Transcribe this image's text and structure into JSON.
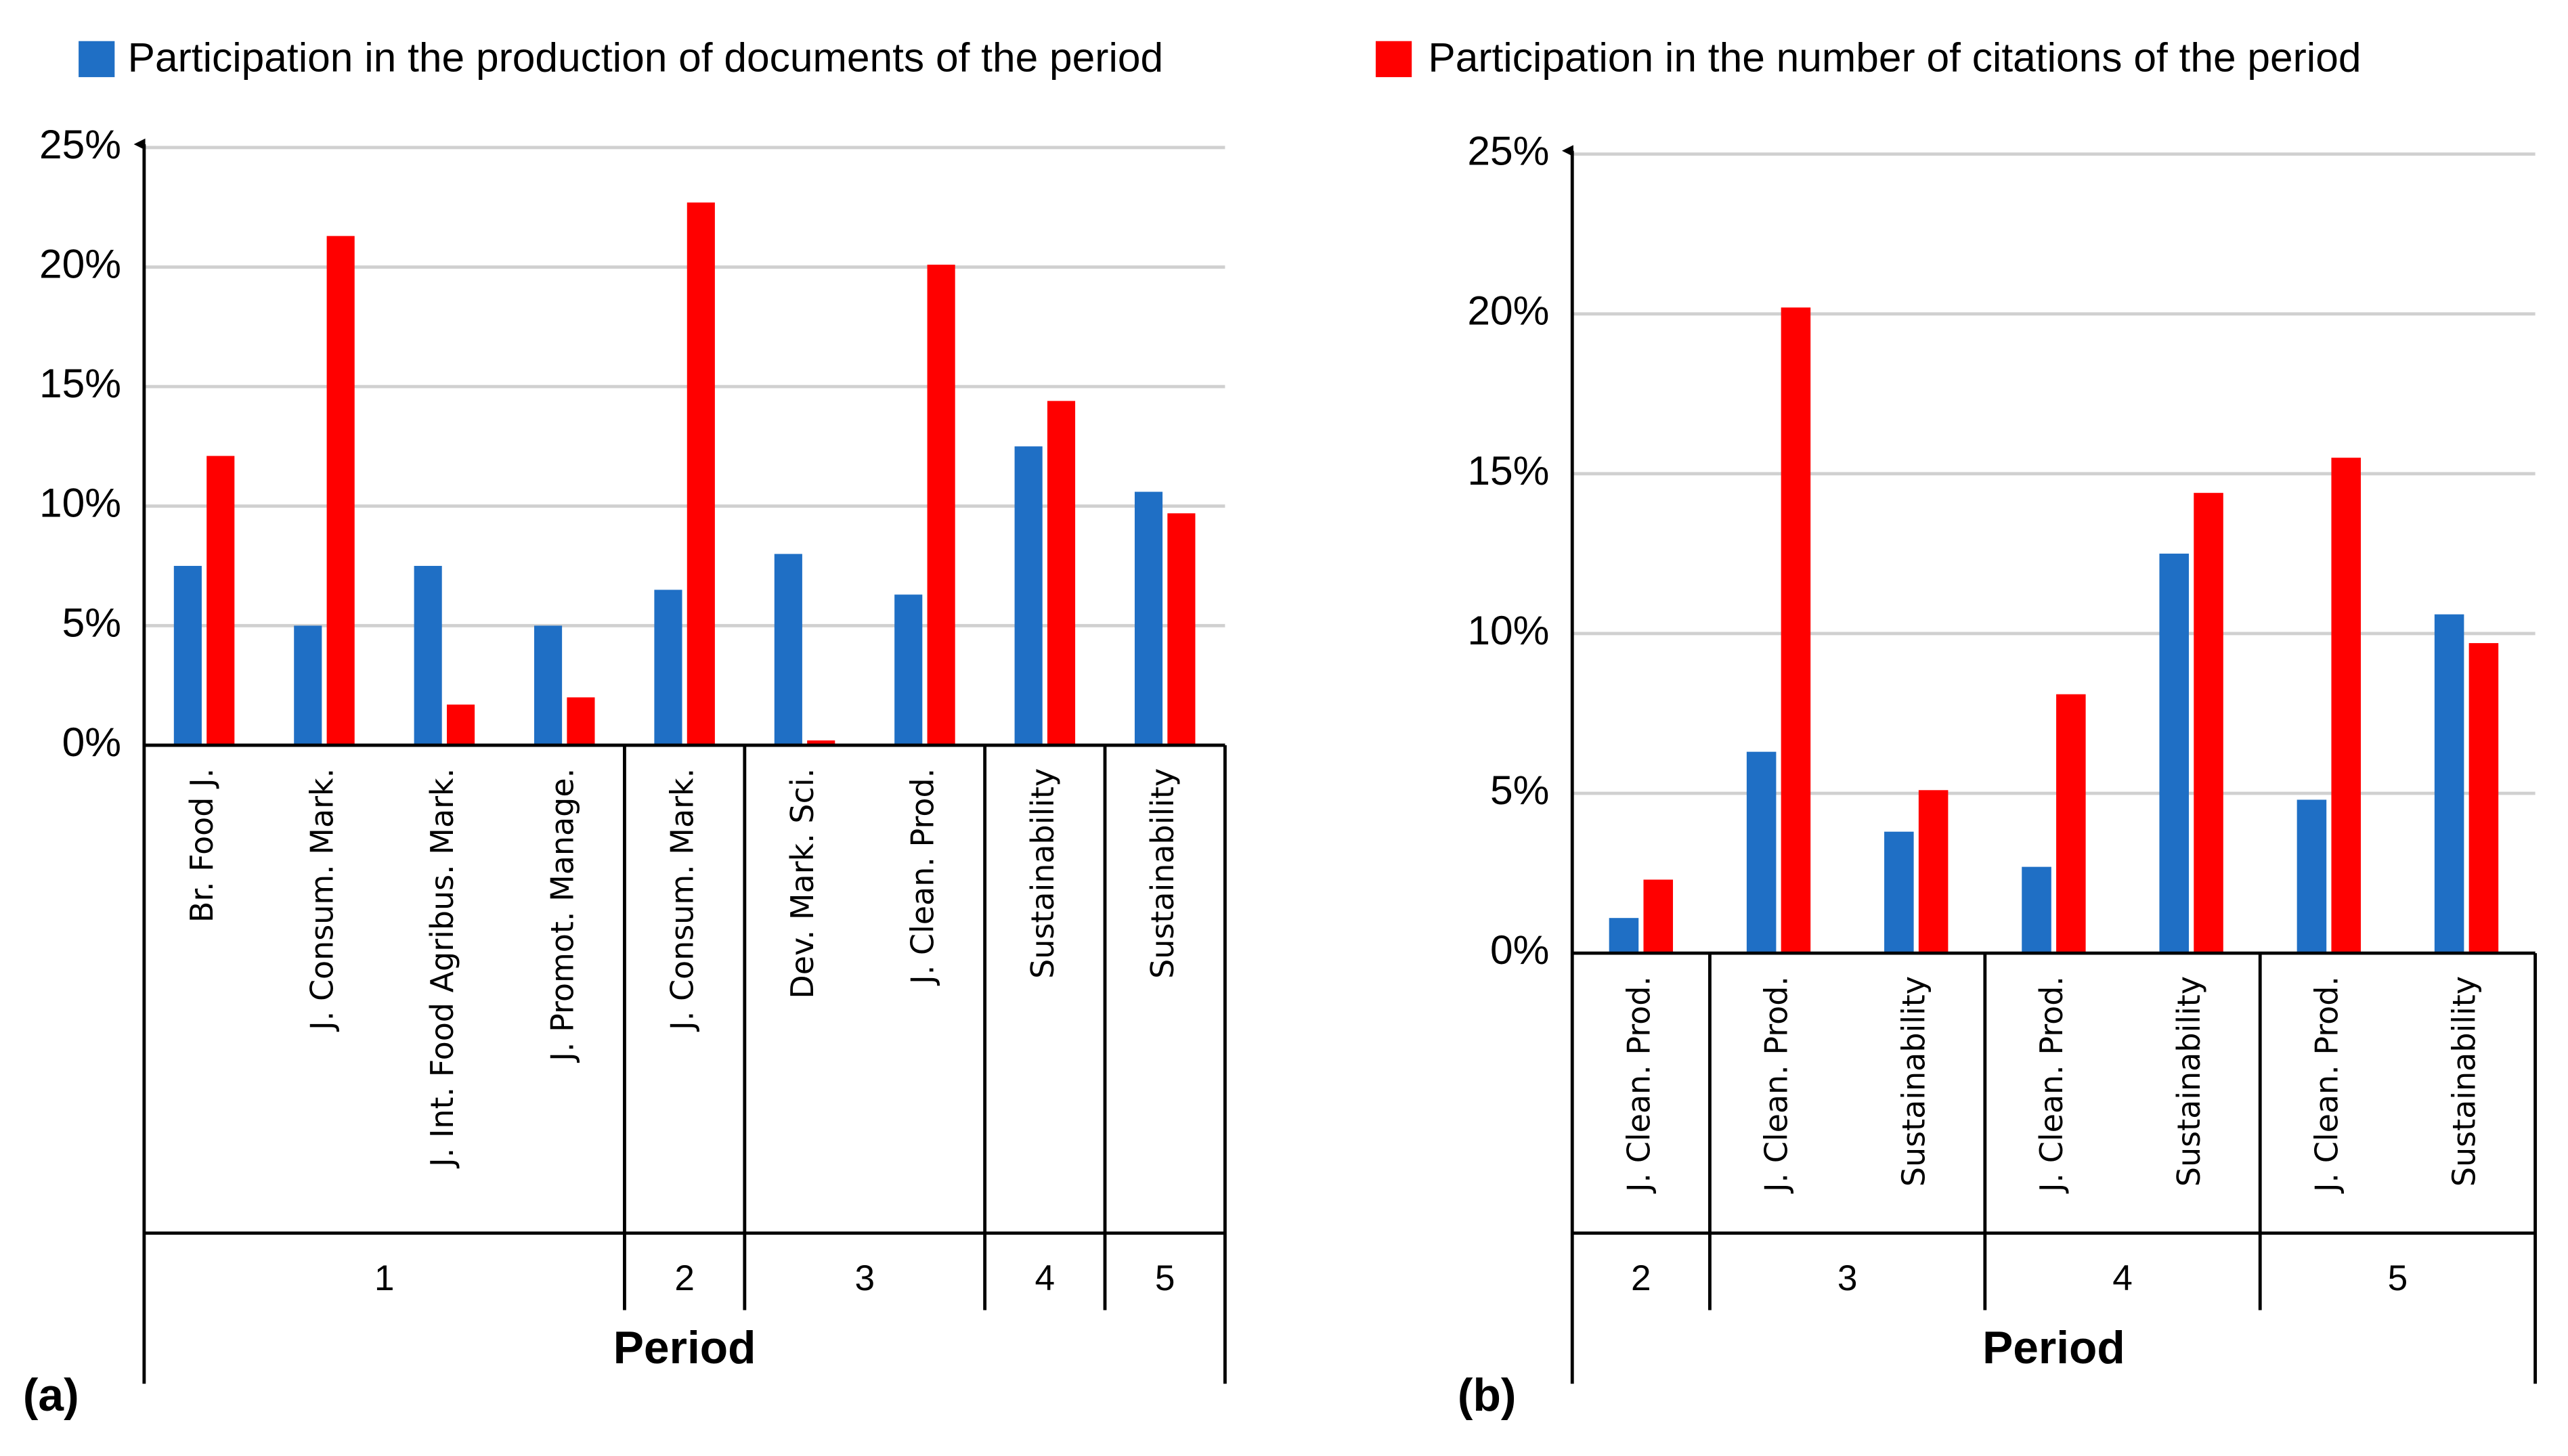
{
  "chart_data": [
    {
      "type": "bar",
      "panel_label": "(a)",
      "x_label": "Period",
      "categories": [
        "Br. Food J.",
        "J. Consum. Mark.",
        "J. Int. Food Agribus. Mark.",
        "J. Promot. Manage.",
        "J. Consum. Mark.",
        "Dev. Mark. Sci.",
        "J. Clean. Prod.",
        "Sustainability",
        "Sustainability"
      ],
      "periods": [
        "1",
        "1",
        "1",
        "1",
        "2",
        "3",
        "3",
        "4",
        "5"
      ],
      "series": [
        {
          "name": "Participation in the production of documents of the period",
          "color": "#1f6fc5",
          "values": [
            7.5,
            5.0,
            7.5,
            5.0,
            6.5,
            8.0,
            6.3,
            12.5,
            10.6
          ]
        },
        {
          "name": "Participation in the number of citations of the period",
          "color": "#ff0000",
          "values": [
            12.1,
            21.3,
            1.7,
            2.0,
            22.7,
            0.2,
            20.1,
            14.4,
            9.7
          ]
        }
      ],
      "ylim": [
        0,
        25
      ],
      "yticks": [
        {
          "value": 0,
          "label": "0%"
        },
        {
          "value": 5,
          "label": "5%"
        },
        {
          "value": 10,
          "label": "10%"
        },
        {
          "value": 15,
          "label": "15%"
        },
        {
          "value": 20,
          "label": "20%"
        },
        {
          "value": 25,
          "label": "25%"
        }
      ],
      "grid": true
    },
    {
      "type": "bar",
      "panel_label": "(b)",
      "x_label": "Period",
      "categories": [
        "J. Clean. Prod.",
        "J. Clean. Prod.",
        "Sustainability",
        "J. Clean. Prod.",
        "Sustainability",
        "J. Clean. Prod.",
        "Sustainability"
      ],
      "periods": [
        "2",
        "3",
        "3",
        "4",
        "4",
        "5",
        "5"
      ],
      "series": [
        {
          "color": "#1f6fc5",
          "values": [
            1.1,
            6.3,
            3.8,
            2.7,
            12.5,
            4.8,
            10.6
          ]
        },
        {
          "color": "#ff0000",
          "values": [
            2.3,
            20.2,
            5.1,
            8.1,
            14.4,
            15.5,
            9.7
          ]
        }
      ],
      "ylim": [
        0,
        25
      ],
      "yticks": [
        {
          "value": 0,
          "label": "0%"
        },
        {
          "value": 5,
          "label": "5%"
        },
        {
          "value": 10,
          "label": "10%"
        },
        {
          "value": 15,
          "label": "15%"
        },
        {
          "value": 20,
          "label": "20%"
        },
        {
          "value": 25,
          "label": "25%"
        }
      ],
      "grid": true
    }
  ]
}
